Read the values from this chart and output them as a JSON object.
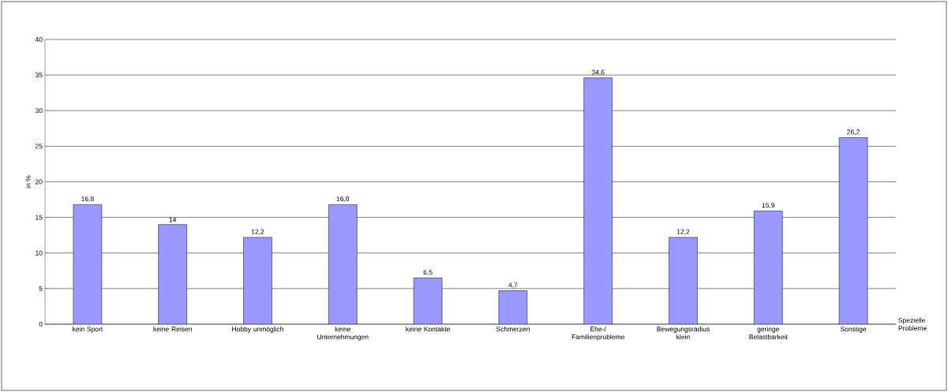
{
  "chart_data": {
    "type": "bar",
    "ylabel": "in %",
    "xlabel": "Spezielle Probleme",
    "categories": [
      "kein Sport",
      "keine Reisen",
      "Hobby unmöglich",
      "keine Unternehmungen",
      "keine Kontakte",
      "Schmerzen",
      "Ehe-/ Familienprobleme",
      "Bewegungsradius klein",
      "geringe Belastbarkeit",
      "Sonstige"
    ],
    "values": [
      16.8,
      14,
      12.2,
      16.8,
      6.5,
      4.7,
      34.6,
      12.2,
      15.9,
      26.2
    ],
    "value_labels": [
      "16,8",
      "14",
      "12,2",
      "16,8",
      "6,5",
      "4,7",
      "34,6",
      "12,2",
      "15,9",
      "26,2"
    ],
    "color": "#9999ff",
    "ylim": [
      0,
      40
    ],
    "yticks": [
      0,
      5,
      10,
      15,
      20,
      25,
      30,
      35,
      40
    ],
    "grid": "y"
  }
}
